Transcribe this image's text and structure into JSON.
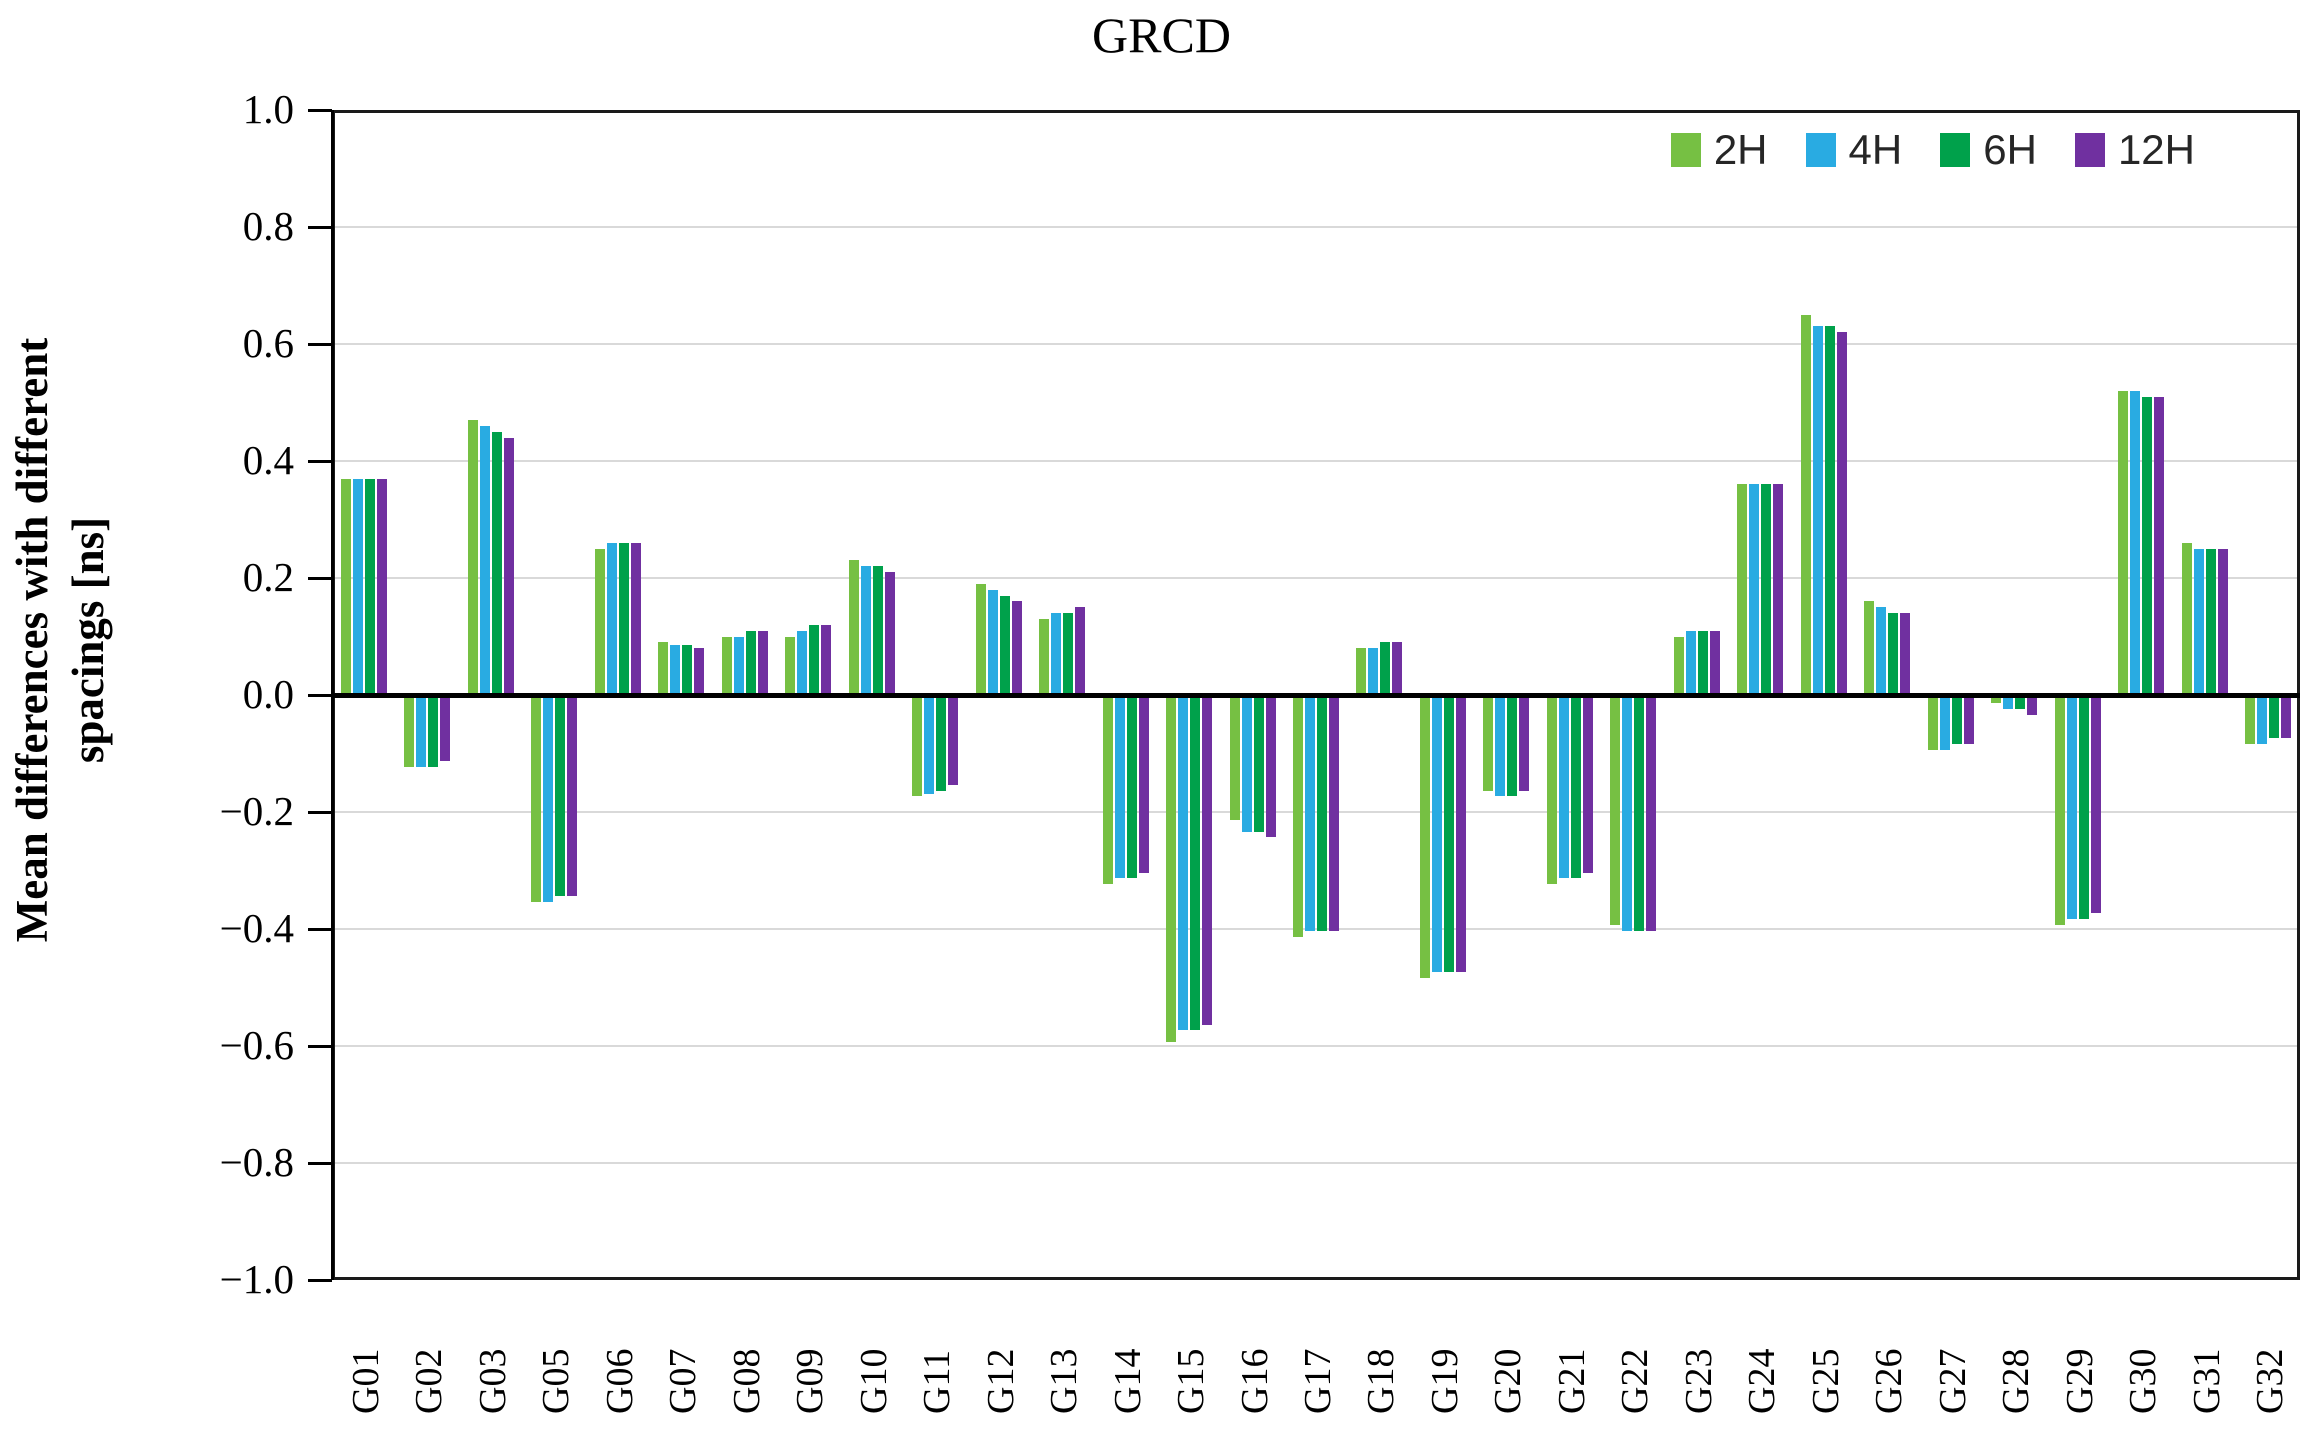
{
  "chart_data": {
    "type": "bar",
    "title": "GRCD",
    "ylabel_line1": "Mean differences with different",
    "ylabel_line2": "spacings [ns]",
    "ylim": [
      -1.0,
      1.0
    ],
    "ytick_labels": [
      "1.0",
      "0.8",
      "0.6",
      "0.4",
      "0.2",
      "0.0",
      "−0.2",
      "−0.4",
      "−0.6",
      "−0.8",
      "−1.0"
    ],
    "grid": true,
    "legend_position": "top-right-inside",
    "categories": [
      "G01",
      "G02",
      "G03",
      "G05",
      "G06",
      "G07",
      "G08",
      "G09",
      "G10",
      "G11",
      "G12",
      "G13",
      "G14",
      "G15",
      "G16",
      "G17",
      "G18",
      "G19",
      "G20",
      "G21",
      "G22",
      "G23",
      "G24",
      "G25",
      "G26",
      "G27",
      "G28",
      "G29",
      "G30",
      "G31",
      "G32"
    ],
    "series": [
      {
        "name": "2H",
        "color": "#76C043",
        "values": [
          0.37,
          -0.12,
          0.47,
          -0.35,
          0.25,
          0.09,
          0.1,
          0.1,
          0.23,
          -0.17,
          0.19,
          0.13,
          -0.32,
          -0.59,
          -0.21,
          -0.41,
          0.08,
          -0.48,
          -0.16,
          -0.32,
          -0.39,
          0.1,
          0.36,
          0.65,
          0.16,
          -0.09,
          -0.01,
          -0.39,
          0.52,
          0.26,
          -0.08
        ]
      },
      {
        "name": "4H",
        "color": "#29ABE2",
        "values": [
          0.37,
          -0.12,
          0.46,
          -0.35,
          0.26,
          0.085,
          0.1,
          0.11,
          0.22,
          -0.165,
          0.18,
          0.14,
          -0.31,
          -0.57,
          -0.23,
          -0.4,
          0.08,
          -0.47,
          -0.17,
          -0.31,
          -0.4,
          0.11,
          0.36,
          0.63,
          0.15,
          -0.09,
          -0.02,
          -0.38,
          0.52,
          0.25,
          -0.08
        ]
      },
      {
        "name": "6H",
        "color": "#00A14B",
        "values": [
          0.37,
          -0.12,
          0.45,
          -0.34,
          0.26,
          0.085,
          0.11,
          0.12,
          0.22,
          -0.16,
          0.17,
          0.14,
          -0.31,
          -0.57,
          -0.23,
          -0.4,
          0.09,
          -0.47,
          -0.17,
          -0.31,
          -0.4,
          0.11,
          0.36,
          0.63,
          0.14,
          -0.08,
          -0.02,
          -0.38,
          0.51,
          0.25,
          -0.07
        ]
      },
      {
        "name": "12H",
        "color": "#7030A0",
        "values": [
          0.37,
          -0.11,
          0.44,
          -0.34,
          0.26,
          0.08,
          0.11,
          0.12,
          0.21,
          -0.15,
          0.16,
          0.15,
          -0.3,
          -0.56,
          -0.24,
          -0.4,
          0.09,
          -0.47,
          -0.16,
          -0.3,
          -0.4,
          0.11,
          0.36,
          0.62,
          0.14,
          -0.08,
          -0.03,
          -0.37,
          0.51,
          0.25,
          -0.07
        ]
      }
    ],
    "colors": {
      "grid": "#d9d9d9",
      "axis": "#000000",
      "frame": "#1a1a1a"
    }
  }
}
